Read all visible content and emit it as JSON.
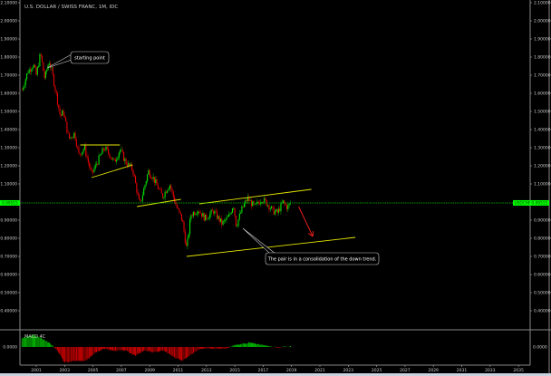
{
  "chart_data": {
    "type": "candlestick",
    "title": "U.S. DOLLAR / SWISS FRANC, 1M, IDC",
    "symbol": "USDCHF",
    "last_price": "0.99515",
    "colors": {
      "up": "#00e600",
      "down": "#e60000",
      "background": "#000000",
      "trendline": "#e6e600",
      "arrow": "#ff2020",
      "price_line": "#00c800",
      "price_label": "#00ff00"
    },
    "y_axis": {
      "range": [
        0.35,
        2.1
      ],
      "ticks": [
        "2.10000",
        "2.00000",
        "1.90000",
        "1.80000",
        "1.70000",
        "1.60000",
        "1.50000",
        "1.40000",
        "1.30000",
        "1.20000",
        "1.10000",
        "0.90000",
        "0.80000",
        "0.70000",
        "0.60000",
        "0.50000",
        "0.40000"
      ],
      "tick_values": [
        2.1,
        2.0,
        1.9,
        1.8,
        1.7,
        1.6,
        1.5,
        1.4,
        1.3,
        1.2,
        1.1,
        0.9,
        0.8,
        0.7,
        0.6,
        0.5,
        0.4
      ]
    },
    "x_axis": {
      "range": [
        2000,
        2036
      ],
      "ticks": [
        "2001",
        "2003",
        "2005",
        "2007",
        "2009",
        "2011",
        "2013",
        "2015",
        "2017",
        "2019",
        "2021",
        "2023",
        "2025",
        "2027",
        "2029",
        "2031",
        "2033",
        "2035"
      ]
    },
    "price_path_approx": [
      [
        2000.0,
        1.62
      ],
      [
        2000.4,
        1.72
      ],
      [
        2000.8,
        1.76
      ],
      [
        2001.0,
        1.7
      ],
      [
        2001.3,
        1.82
      ],
      [
        2001.6,
        1.68
      ],
      [
        2001.9,
        1.78
      ],
      [
        2002.1,
        1.72
      ],
      [
        2002.4,
        1.6
      ],
      [
        2002.7,
        1.47
      ],
      [
        2002.9,
        1.5
      ],
      [
        2003.3,
        1.35
      ],
      [
        2003.7,
        1.38
      ],
      [
        2004.0,
        1.26
      ],
      [
        2004.4,
        1.3
      ],
      [
        2004.9,
        1.15
      ],
      [
        2005.3,
        1.22
      ],
      [
        2005.8,
        1.3
      ],
      [
        2006.2,
        1.26
      ],
      [
        2006.5,
        1.22
      ],
      [
        2006.9,
        1.29
      ],
      [
        2007.3,
        1.22
      ],
      [
        2007.8,
        1.18
      ],
      [
        2008.2,
        1.02
      ],
      [
        2008.3,
        0.98
      ],
      [
        2008.9,
        1.17
      ],
      [
        2009.2,
        1.14
      ],
      [
        2009.9,
        1.03
      ],
      [
        2010.4,
        1.1
      ],
      [
        2010.9,
        0.97
      ],
      [
        2011.3,
        0.9
      ],
      [
        2011.6,
        0.74
      ],
      [
        2011.9,
        0.93
      ],
      [
        2012.4,
        0.96
      ],
      [
        2012.9,
        0.91
      ],
      [
        2013.5,
        0.95
      ],
      [
        2014.1,
        0.88
      ],
      [
        2014.6,
        0.92
      ],
      [
        2014.9,
        0.99
      ],
      [
        2015.1,
        0.87
      ],
      [
        2015.5,
        0.96
      ],
      [
        2015.9,
        1.02
      ],
      [
        2016.4,
        0.97
      ],
      [
        2016.9,
        1.02
      ],
      [
        2017.3,
        0.99
      ],
      [
        2017.7,
        0.95
      ],
      [
        2018.0,
        0.94
      ],
      [
        2018.4,
        1.0
      ],
      [
        2018.7,
        0.97
      ],
      [
        2018.95,
        0.995
      ]
    ],
    "macd_histogram_approx": [
      [
        2000.0,
        0.05
      ],
      [
        2000.8,
        0.07
      ],
      [
        2001.4,
        0.05
      ],
      [
        2002.0,
        0.02
      ],
      [
        2002.5,
        -0.02
      ],
      [
        2003.0,
        -0.09
      ],
      [
        2003.7,
        -0.08
      ],
      [
        2004.5,
        -0.08
      ],
      [
        2005.2,
        -0.03
      ],
      [
        2005.8,
        -0.01
      ],
      [
        2006.5,
        -0.02
      ],
      [
        2007.3,
        -0.02
      ],
      [
        2008.0,
        -0.05
      ],
      [
        2008.6,
        -0.02
      ],
      [
        2009.3,
        -0.03
      ],
      [
        2010.0,
        -0.02
      ],
      [
        2010.7,
        -0.06
      ],
      [
        2011.3,
        -0.08
      ],
      [
        2011.8,
        -0.05
      ],
      [
        2012.5,
        -0.01
      ],
      [
        2013.5,
        -0.01
      ],
      [
        2014.4,
        -0.01
      ],
      [
        2015.0,
        0.01
      ],
      [
        2016.0,
        0.025
      ],
      [
        2016.8,
        0.015
      ],
      [
        2017.5,
        0.005
      ],
      [
        2018.0,
        -0.004
      ],
      [
        2018.5,
        0.002
      ],
      [
        2018.95,
        0.003
      ]
    ],
    "indicator": {
      "label": "MACD 4C",
      "zero_label": "0.0000"
    },
    "annotations": {
      "callouts": [
        {
          "text": "starting point",
          "target": [
            2001.0,
            1.78
          ]
        },
        {
          "text": "The pair is in a consolidation of the down trend.",
          "target": [
            2015.5,
            0.93
          ]
        }
      ],
      "trendlines": [
        [
          [
            2004.1,
            1.315
          ],
          [
            2006.9,
            1.315
          ]
        ],
        [
          [
            2004.9,
            1.135
          ],
          [
            2007.8,
            1.205
          ]
        ],
        [
          [
            2008.1,
            0.975
          ],
          [
            2011.2,
            1.015
          ]
        ],
        [
          [
            2012.5,
            0.99
          ],
          [
            2020.4,
            1.07
          ]
        ],
        [
          [
            2011.6,
            0.7
          ],
          [
            2023.5,
            0.805
          ]
        ]
      ],
      "arrow": [
        [
          2019.5,
          0.975
        ],
        [
          2020.5,
          0.81
        ]
      ]
    },
    "grid": false,
    "legend": "none"
  }
}
